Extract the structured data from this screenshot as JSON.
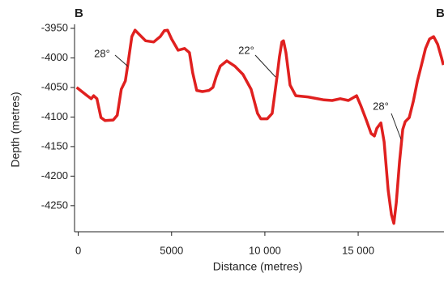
{
  "chart_data": {
    "type": "line",
    "panel_label_left": "B",
    "panel_label_right": "B",
    "xlabel": "Distance (metres)",
    "ylabel": "Depth (metres)",
    "annotations": [
      "28°",
      "22°",
      "28°"
    ],
    "xlim": [
      -200,
      19600
    ],
    "ylim": [
      -4290,
      -3940
    ],
    "xticks": [
      0,
      5000,
      {
        "value": 10000,
        "label": "10 000"
      },
      {
        "value": 15000,
        "label": "15 000"
      }
    ],
    "yticks": [
      -3950,
      -4000,
      -4050,
      -4100,
      -4150,
      -4200,
      -4250
    ],
    "series": [
      {
        "color": "#e0201f",
        "x": [
          -87,
          478,
          696,
          826,
          1000,
          1217,
          1435,
          1870,
          2087,
          2304,
          2522,
          2652,
          2870,
          3043,
          3261,
          3609,
          4043,
          4391,
          4609,
          4783,
          5000,
          5348,
          5696,
          5957,
          6130,
          6348,
          6652,
          7000,
          7217,
          7391,
          7609,
          7957,
          8391,
          8826,
          9261,
          9609,
          9783,
          10130,
          10391,
          10652,
          10783,
          10913,
          11000,
          11130,
          11348,
          11652,
          12304,
          13174,
          13609,
          14043,
          14478,
          14913,
          15130,
          15435,
          15696,
          15870,
          16000,
          16217,
          16391,
          16609,
          16783,
          16913,
          17043,
          17217,
          17391,
          17522,
          17739,
          17957,
          18174,
          18391,
          18609,
          18826,
          19043,
          19261,
          19478,
          19565
        ],
        "values": [
          -4050,
          -4064,
          -4069,
          -4064,
          -4069,
          -4101,
          -4106,
          -4105,
          -4097,
          -4053,
          -4039,
          -4012,
          -3964,
          -3953,
          -3960,
          -3971,
          -3973,
          -3964,
          -3954,
          -3953,
          -3968,
          -3987,
          -3984,
          -3991,
          -4025,
          -4055,
          -4057,
          -4055,
          -4050,
          -4032,
          -4014,
          -4005,
          -4014,
          -4028,
          -4053,
          -4094,
          -4103,
          -4103,
          -4094,
          -4032,
          -3998,
          -3973,
          -3971,
          -3991,
          -4046,
          -4064,
          -4066,
          -4071,
          -4072,
          -4069,
          -4072,
          -4064,
          -4080,
          -4105,
          -4128,
          -4132,
          -4119,
          -4110,
          -4142,
          -4224,
          -4265,
          -4280,
          -4245,
          -4176,
          -4121,
          -4108,
          -4101,
          -4073,
          -4039,
          -4012,
          -3984,
          -3968,
          -3964,
          -3977,
          -4001,
          -4012
        ]
      }
    ]
  }
}
